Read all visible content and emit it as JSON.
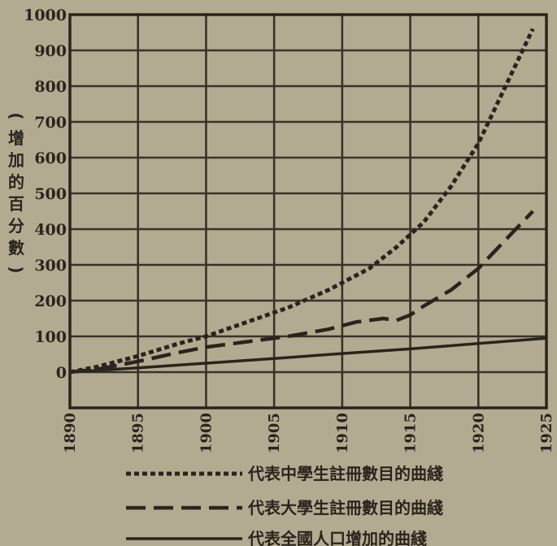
{
  "chart_data": {
    "type": "line",
    "ylabel": "(增加的百分數)",
    "xlim": [
      1890,
      1925
    ],
    "ylim": [
      -100,
      1000
    ],
    "x_ticks": [
      1890,
      1895,
      1900,
      1905,
      1910,
      1915,
      1920,
      1925
    ],
    "y_ticks": [
      0,
      100,
      200,
      300,
      400,
      500,
      600,
      700,
      800,
      900,
      1000
    ],
    "grid": true,
    "legend_position": "bottom",
    "series": [
      {
        "name": "代表中學生註冊數目的曲綫",
        "line_style": "dotted",
        "x": [
          1890,
          1892,
          1895,
          1898,
          1900,
          1903,
          1906,
          1909,
          1912,
          1914,
          1916,
          1918,
          1920,
          1922,
          1924
        ],
        "values": [
          0,
          15,
          45,
          80,
          100,
          140,
          180,
          230,
          290,
          350,
          420,
          520,
          640,
          800,
          960
        ]
      },
      {
        "name": "代表大學生註冊數目的曲綫",
        "line_style": "dashed",
        "x": [
          1890,
          1892,
          1895,
          1898,
          1900,
          1903,
          1906,
          1909,
          1911,
          1913,
          1914,
          1915,
          1916,
          1918,
          1920,
          1922,
          1924
        ],
        "values": [
          0,
          8,
          30,
          55,
          70,
          85,
          100,
          120,
          140,
          150,
          145,
          160,
          185,
          230,
          290,
          370,
          450
        ]
      },
      {
        "name": "代表全國人口增加的曲綫",
        "line_style": "solid",
        "x": [
          1890,
          1895,
          1900,
          1905,
          1910,
          1915,
          1920,
          1925
        ],
        "values": [
          0,
          12,
          25,
          38,
          52,
          65,
          80,
          95
        ]
      }
    ]
  }
}
